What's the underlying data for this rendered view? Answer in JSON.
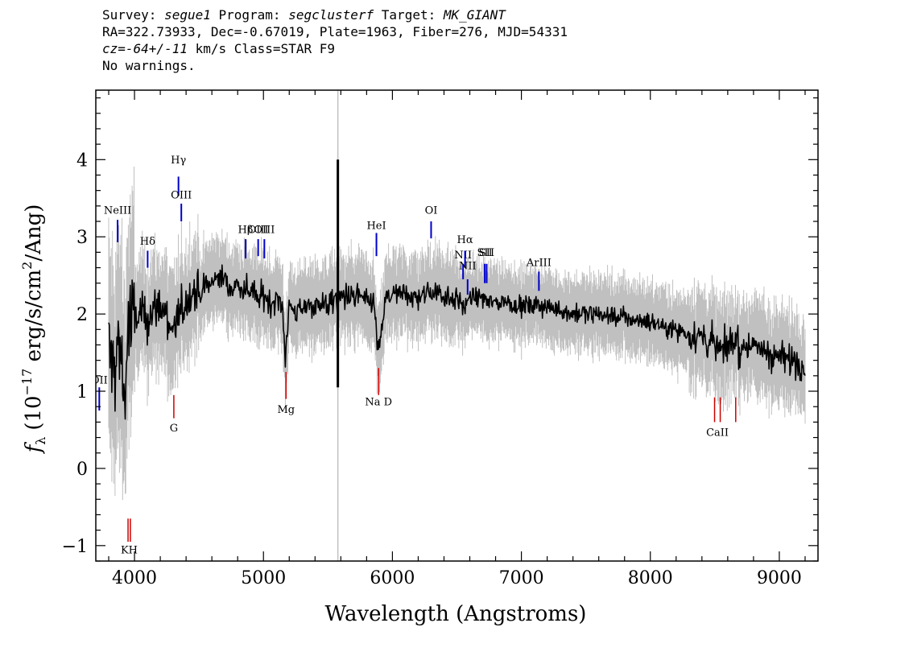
{
  "header": {
    "line1": {
      "survey_label": "Survey: ",
      "survey": "segue1",
      "program_label": " Program: ",
      "program": "segclusterf",
      "target_label": " Target: ",
      "target": "MK_GIANT"
    },
    "line2": "RA=322.73933, Dec=-0.67019, Plate=1963, Fiber=276, MJD=54331",
    "line3": {
      "cz": "cz=-64+/-11",
      "rest": " km/s Class=STAR F9"
    },
    "line4": "No warnings."
  },
  "chart_data": {
    "type": "line",
    "xlabel": "Wavelength (Angstroms)",
    "ylabel_parts": {
      "f": "f",
      "sub": "λ",
      "pre": "(10",
      "exp": "−17",
      "mid": " erg/s/cm",
      "sq": "2",
      "post": "/Ang)"
    },
    "xlim": [
      3700,
      9300
    ],
    "ylim": [
      -1.2,
      4.9
    ],
    "xticks": [
      4000,
      5000,
      6000,
      7000,
      8000,
      9000
    ],
    "xtick_labels": [
      "4000",
      "5000",
      "6000",
      "7000",
      "8000",
      "9000"
    ],
    "yticks": [
      -1,
      0,
      1,
      2,
      3,
      4
    ],
    "ytick_labels": [
      "−1",
      "0",
      "1",
      "2",
      "3",
      "4"
    ],
    "series": [
      {
        "role": "error band",
        "color": "#c0c0c0"
      },
      {
        "role": "flux",
        "color": "#000000"
      }
    ],
    "flux_x": [
      3800,
      3830,
      3860,
      3880,
      3900,
      3920,
      3940,
      3960,
      3980,
      4000,
      4050,
      4100,
      4150,
      4200,
      4250,
      4300,
      4340,
      4400,
      4450,
      4500,
      4550,
      4600,
      4650,
      4700,
      4750,
      4800,
      4850,
      4900,
      4950,
      5000,
      5050,
      5100,
      5150,
      5170,
      5200,
      5250,
      5300,
      5350,
      5400,
      5450,
      5500,
      5550,
      5577,
      5600,
      5650,
      5700,
      5750,
      5800,
      5850,
      5890,
      5950,
      6000,
      6100,
      6200,
      6300,
      6400,
      6500,
      6563,
      6600,
      6700,
      6800,
      6900,
      7000,
      7200,
      7400,
      7600,
      7800,
      8000,
      8200,
      8400,
      8500,
      8540,
      8600,
      8662,
      8700,
      8800,
      8900,
      9000,
      9100,
      9200
    ],
    "flux_y": [
      1.5,
      1.3,
      1.4,
      1.6,
      1.5,
      0.8,
      1.5,
      1.9,
      1.8,
      1.9,
      2.0,
      1.95,
      2.05,
      2.1,
      2.0,
      1.75,
      1.95,
      2.15,
      2.3,
      2.25,
      2.35,
      2.4,
      2.5,
      2.45,
      2.3,
      2.4,
      2.3,
      2.35,
      2.2,
      2.25,
      2.15,
      2.2,
      2.1,
      1.4,
      2.1,
      2.05,
      2.0,
      2.15,
      2.1,
      2.15,
      2.1,
      2.2,
      2.2,
      2.2,
      2.25,
      2.2,
      2.25,
      2.15,
      2.2,
      1.5,
      2.2,
      2.25,
      2.25,
      2.2,
      2.3,
      2.25,
      2.2,
      2.1,
      2.2,
      2.2,
      2.15,
      2.15,
      2.1,
      2.1,
      2.0,
      2.0,
      1.95,
      1.9,
      1.8,
      1.7,
      1.6,
      1.55,
      1.6,
      1.65,
      1.55,
      1.6,
      1.5,
      1.45,
      1.4,
      1.35
    ],
    "spike": {
      "x": 5577,
      "y_low": 1.05,
      "y_high": 4.0
    },
    "sky_line_x": 5577,
    "emission_lines": [
      {
        "label": "NeIII",
        "x": 3869,
        "y_bottom": 2.93,
        "y_top": 3.22,
        "label_y": 3.3
      },
      {
        "label": "Hδ",
        "x": 4102,
        "y_bottom": 2.6,
        "y_top": 2.82,
        "label_y": 2.9
      },
      {
        "label": "Hγ",
        "x": 4341,
        "y_bottom": 3.53,
        "y_top": 3.78,
        "label_y": 3.95
      },
      {
        "label": "OIII",
        "x": 4363,
        "y_bottom": 3.2,
        "y_top": 3.43,
        "label_y": 3.5
      },
      {
        "label": "Hβ",
        "x": 4861,
        "y_bottom": 2.72,
        "y_top": 2.97,
        "label_y": 3.05
      },
      {
        "label": "OIII",
        "x": 4959,
        "y_bottom": 2.75,
        "y_top": 2.97,
        "label_y": 3.05
      },
      {
        "label": "OIII",
        "x": 5007,
        "y_bottom": 2.72,
        "y_top": 2.97,
        "label_y": 3.05
      },
      {
        "label": "HeI",
        "x": 5876,
        "y_bottom": 2.75,
        "y_top": 3.05,
        "label_y": 3.1
      },
      {
        "label": "OI",
        "x": 6300,
        "y_bottom": 2.98,
        "y_top": 3.2,
        "label_y": 3.3
      },
      {
        "label": "NII",
        "x": 6548,
        "y_bottom": 2.45,
        "y_top": 2.65,
        "label_y": 2.72
      },
      {
        "label": "Hα",
        "x": 6563,
        "y_bottom": 2.6,
        "y_top": 2.82,
        "label_y": 2.92
      },
      {
        "label": "NII",
        "x": 6583,
        "y_bottom": 2.25,
        "y_top": 2.45,
        "label_y": 2.58
      },
      {
        "label": "SII",
        "x": 6716,
        "y_bottom": 2.4,
        "y_top": 2.65,
        "label_y": 2.75
      },
      {
        "label": "SII",
        "x": 6731,
        "y_bottom": 2.4,
        "y_top": 2.65,
        "label_y": 2.75
      },
      {
        "label": "ArIII",
        "x": 7136,
        "y_bottom": 2.3,
        "y_top": 2.55,
        "label_y": 2.62
      },
      {
        "label": "OII",
        "x": 3727,
        "y_bottom": 0.75,
        "y_top": 1.05,
        "label_y": 1.1
      }
    ],
    "absorption_lines": [
      {
        "label": "KH",
        "x": 3950,
        "x2": 3968,
        "y_bottom": -0.95,
        "y_top": -0.65,
        "label_y": -1.1
      },
      {
        "label": "G",
        "x": 4305,
        "y_bottom": 0.65,
        "y_top": 0.95,
        "label_y": 0.48
      },
      {
        "label": "Mg",
        "x": 5175,
        "y_bottom": 0.9,
        "y_top": 1.25,
        "label_y": 0.72
      },
      {
        "label": "Na D",
        "x": 5893,
        "y_bottom": 0.95,
        "y_top": 1.3,
        "label_y": 0.82
      },
      {
        "label": "CaII",
        "x": 8498,
        "x2": 8542,
        "x3": 8662,
        "y_bottom": 0.6,
        "y_top": 0.92,
        "label_y": 0.42
      }
    ],
    "line_colors": {
      "emission": "#0000cc",
      "absorption": "#cc0000"
    }
  }
}
